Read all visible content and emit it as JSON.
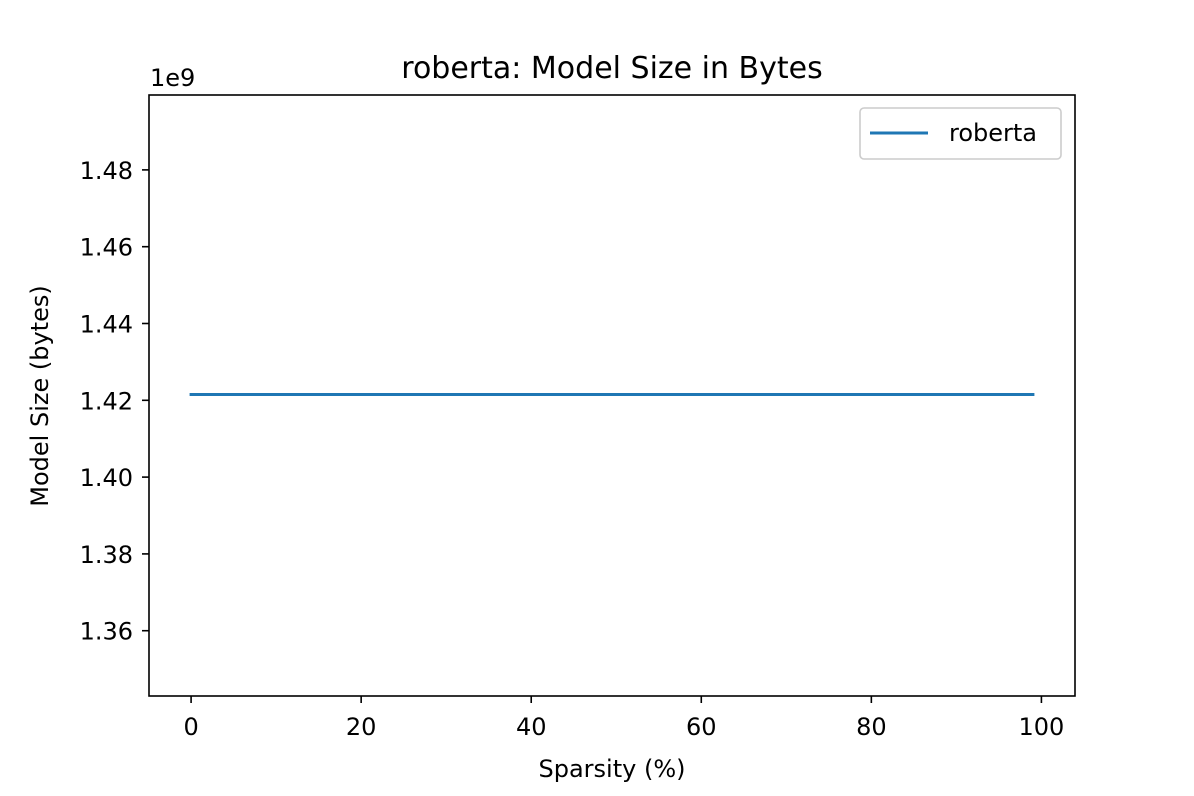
{
  "chart_data": {
    "type": "line",
    "title": "roberta: Model Size in Bytes",
    "xlabel": "Sparsity (%)",
    "ylabel": "Model Size (bytes)",
    "y_offset_label": "1e9",
    "y_scale_factor": 1000000000,
    "xlim": [
      -4.95,
      103.95
    ],
    "ylim": [
      1.343,
      1.4995
    ],
    "x_ticks": [
      0,
      20,
      40,
      60,
      80,
      100
    ],
    "x_tick_labels": [
      "0",
      "20",
      "40",
      "60",
      "80",
      "100"
    ],
    "y_ticks": [
      1.36,
      1.38,
      1.4,
      1.42,
      1.44,
      1.46,
      1.48
    ],
    "y_tick_labels": [
      "1.36",
      "1.38",
      "1.40",
      "1.42",
      "1.44",
      "1.46",
      "1.48"
    ],
    "grid": false,
    "legend_position": "top-right",
    "series": [
      {
        "name": "roberta",
        "color": "#1f77b4",
        "x": [
          0,
          99
        ],
        "y": [
          1.4215,
          1.4215
        ]
      }
    ]
  }
}
